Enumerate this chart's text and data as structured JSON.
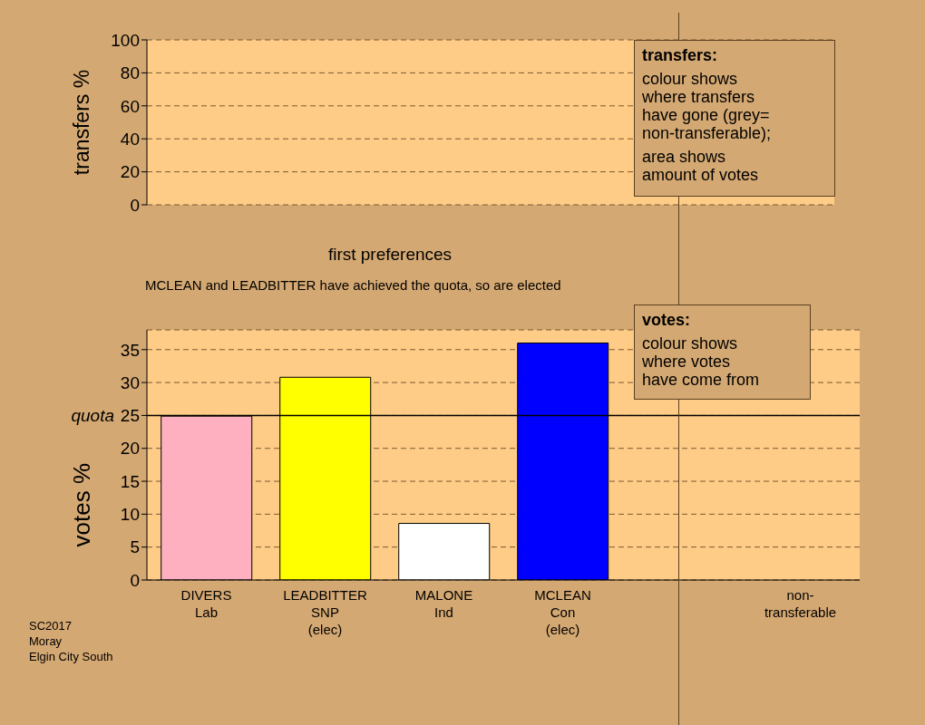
{
  "chart_data": [
    {
      "type": "bar",
      "ylabel": "transfers %",
      "categories": [
        null,
        null,
        null,
        null,
        null,
        null
      ],
      "values": [
        null,
        null,
        null,
        null,
        null,
        null
      ],
      "ylim": [
        0,
        100
      ],
      "yticks": [
        0,
        20,
        40,
        60,
        80,
        100
      ],
      "grid": "y",
      "tick_labels": "y",
      "annotations": [
        "transfers:",
        "colour shows\nwhere transfers\nhave gone (grey=\nnon-transferable);",
        "area shows\namount of votes"
      ]
    },
    {
      "type": "bar",
      "title": "first preferences",
      "subtitle": "MCLEAN and LEADBITTER have achieved the quota, so are elected",
      "ylabel": "votes %",
      "categories": [
        "DIVERS\nLab",
        "LEADBITTER\nSNP\n(elec)",
        "MALONE\nInd",
        "MCLEAN\nCon\n(elec)",
        null,
        "non-\ntransferable"
      ],
      "values": [
        24.9,
        30.8,
        8.6,
        36.0,
        null,
        null
      ],
      "colors": [
        "#ffb0c0",
        "#ffff00",
        "#ffffff",
        "#0000ff",
        "#808080",
        "#808080"
      ],
      "ylim": [
        0,
        38
      ],
      "yticks": [
        0,
        5,
        10,
        15,
        20,
        25,
        30,
        35
      ],
      "grid": "y",
      "ref_lines": [
        {
          "axis": "y",
          "value": 25,
          "label": "quota",
          "color": "#000000",
          "line_style": "solid"
        }
      ],
      "annotations": [
        "votes:",
        "colour shows\nwhere votes\nhave come from",
        "SC2017\nMoray\nElgin City South"
      ]
    }
  ]
}
